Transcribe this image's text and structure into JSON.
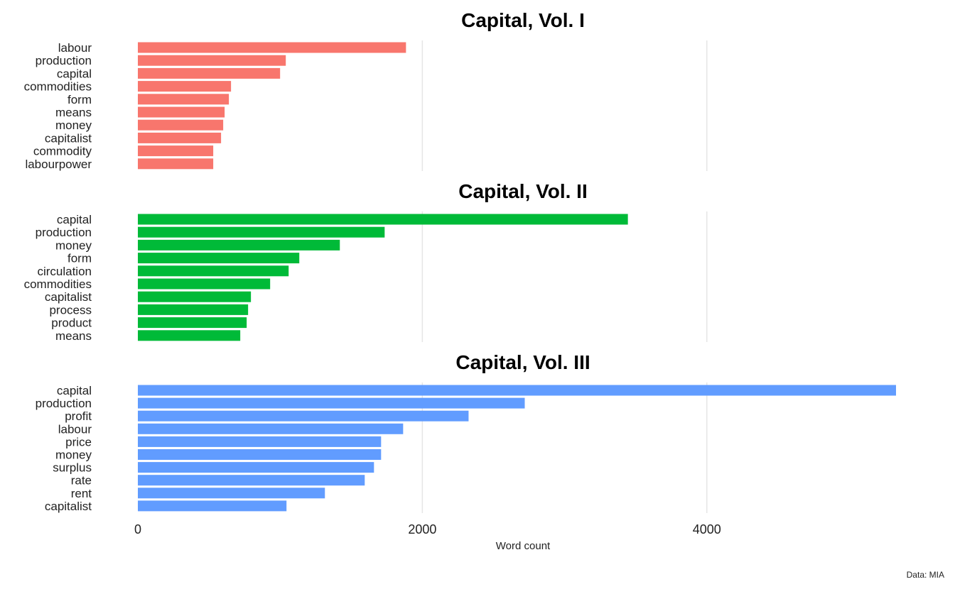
{
  "chart_data": {
    "type": "bar",
    "orientation": "horizontal",
    "xlabel": "Word count",
    "xlim": [
      0,
      5400
    ],
    "xticks": [
      0,
      2000,
      4000
    ],
    "x_tick_labels": [
      "0",
      "2000",
      "4000"
    ],
    "grid": true,
    "caption": "Data: MIA",
    "panels": [
      {
        "title": "Capital, Vol. I",
        "color": "#F8766D",
        "categories": [
          "labour",
          "production",
          "capital",
          "commodities",
          "form",
          "means",
          "money",
          "capitalist",
          "commodity",
          "labourpower"
        ],
        "values": [
          1885,
          1040,
          1000,
          655,
          640,
          610,
          600,
          585,
          530,
          530
        ]
      },
      {
        "title": "Capital, Vol. II",
        "color": "#00BA38",
        "categories": [
          "capital",
          "production",
          "money",
          "form",
          "circulation",
          "commodities",
          "capitalist",
          "process",
          "product",
          "means"
        ],
        "values": [
          3445,
          1735,
          1420,
          1135,
          1060,
          930,
          795,
          775,
          765,
          720
        ]
      },
      {
        "title": "Capital, Vol. III",
        "color": "#619CFF",
        "categories": [
          "capital",
          "production",
          "profit",
          "labour",
          "price",
          "money",
          "surplus",
          "rate",
          "rent",
          "capitalist"
        ],
        "values": [
          5330,
          2720,
          2325,
          1865,
          1710,
          1710,
          1660,
          1595,
          1315,
          1045
        ]
      }
    ]
  }
}
